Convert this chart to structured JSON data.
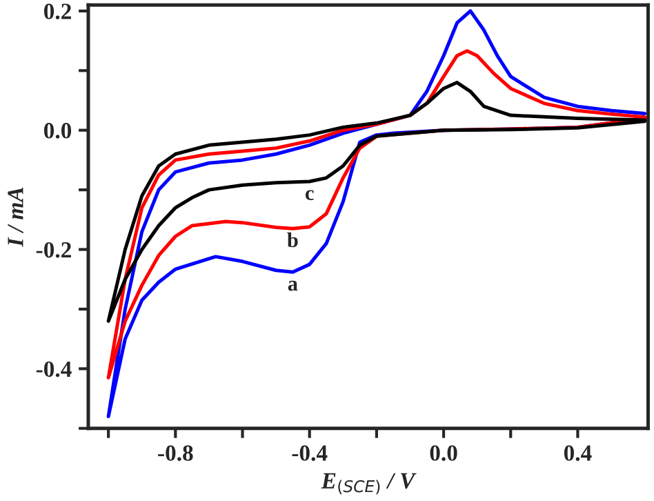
{
  "chart_data": {
    "type": "line",
    "xlabel": "E$_{(SCE)}$ / V",
    "ylabel": "I / mA",
    "xlim": [
      -1.06,
      0.61
    ],
    "ylim": [
      -0.5,
      0.21
    ],
    "xticks": [
      {
        "value": -1.0,
        "label": null
      },
      -0.8,
      {
        "value": -0.6,
        "label": null
      },
      -0.4,
      {
        "value": -0.2,
        "label": null
      },
      {
        "value": 0,
        "label": "0.0"
      },
      {
        "value": 0.2,
        "label": null
      },
      0.4
    ],
    "yticks": [
      {
        "value": -0.5,
        "label": null
      },
      -0.4,
      {
        "value": -0.3,
        "label": null
      },
      -0.2,
      {
        "value": -0.1,
        "label": null
      },
      {
        "value": 0,
        "label": "0.0"
      },
      {
        "value": 0.1,
        "label": null
      },
      0.2
    ],
    "grid": false,
    "line_style": "solid",
    "marker": "none",
    "series": [
      {
        "name": "a",
        "color": "#0000ff",
        "x": [
          0.6,
          0.4,
          0.2,
          0.0,
          -0.15,
          -0.2,
          -0.25,
          -0.3,
          -0.35,
          -0.4,
          -0.45,
          -0.5,
          -0.6,
          -0.68,
          -0.8,
          -0.85,
          -0.9,
          -0.95,
          -1.0,
          -0.95,
          -0.9,
          -0.85,
          -0.8,
          -0.7,
          -0.6,
          -0.5,
          -0.4,
          -0.3,
          -0.2,
          -0.1,
          -0.05,
          0.0,
          0.04,
          0.08,
          0.12,
          0.16,
          0.2,
          0.3,
          0.4,
          0.5,
          0.6
        ],
        "values": [
          0.02,
          0.005,
          0.002,
          0.0,
          -0.005,
          -0.008,
          -0.02,
          -0.12,
          -0.19,
          -0.225,
          -0.238,
          -0.235,
          -0.22,
          -0.212,
          -0.233,
          -0.255,
          -0.285,
          -0.35,
          -0.48,
          -0.3,
          -0.17,
          -0.1,
          -0.07,
          -0.055,
          -0.05,
          -0.04,
          -0.025,
          -0.005,
          0.01,
          0.025,
          0.065,
          0.125,
          0.18,
          0.2,
          0.168,
          0.125,
          0.09,
          0.055,
          0.04,
          0.033,
          0.028
        ]
      },
      {
        "name": "b",
        "color": "#ff0000",
        "x": [
          0.6,
          0.4,
          0.2,
          0.0,
          -0.2,
          -0.25,
          -0.3,
          -0.35,
          -0.4,
          -0.45,
          -0.5,
          -0.6,
          -0.65,
          -0.75,
          -0.8,
          -0.85,
          -0.9,
          -0.95,
          -1.0,
          -0.95,
          -0.9,
          -0.85,
          -0.8,
          -0.7,
          -0.6,
          -0.5,
          -0.4,
          -0.3,
          -0.2,
          -0.1,
          -0.05,
          0.0,
          0.04,
          0.07,
          0.1,
          0.15,
          0.2,
          0.3,
          0.4,
          0.5,
          0.6
        ],
        "values": [
          0.02,
          0.005,
          0.002,
          0.0,
          -0.01,
          -0.03,
          -0.08,
          -0.14,
          -0.162,
          -0.165,
          -0.163,
          -0.155,
          -0.153,
          -0.16,
          -0.178,
          -0.21,
          -0.26,
          -0.32,
          -0.415,
          -0.25,
          -0.13,
          -0.075,
          -0.05,
          -0.04,
          -0.035,
          -0.03,
          -0.018,
          0.0,
          0.01,
          0.025,
          0.045,
          0.09,
          0.125,
          0.133,
          0.125,
          0.095,
          0.07,
          0.045,
          0.033,
          0.027,
          0.022
        ]
      },
      {
        "name": "c",
        "color": "#000000",
        "x": [
          0.6,
          0.4,
          0.2,
          0.0,
          -0.2,
          -0.25,
          -0.3,
          -0.35,
          -0.4,
          -0.5,
          -0.6,
          -0.7,
          -0.75,
          -0.8,
          -0.85,
          -0.9,
          -0.95,
          -1.0,
          -0.95,
          -0.9,
          -0.85,
          -0.8,
          -0.7,
          -0.6,
          -0.5,
          -0.4,
          -0.3,
          -0.2,
          -0.1,
          -0.05,
          0.0,
          0.04,
          0.08,
          0.12,
          0.2,
          0.4,
          0.6
        ],
        "values": [
          0.015,
          0.004,
          0.001,
          0.0,
          -0.01,
          -0.025,
          -0.06,
          -0.08,
          -0.086,
          -0.088,
          -0.092,
          -0.1,
          -0.113,
          -0.13,
          -0.16,
          -0.2,
          -0.25,
          -0.32,
          -0.2,
          -0.11,
          -0.06,
          -0.04,
          -0.025,
          -0.02,
          -0.015,
          -0.008,
          0.005,
          0.012,
          0.025,
          0.045,
          0.07,
          0.08,
          0.065,
          0.04,
          0.025,
          0.02,
          0.017
        ]
      }
    ]
  }
}
